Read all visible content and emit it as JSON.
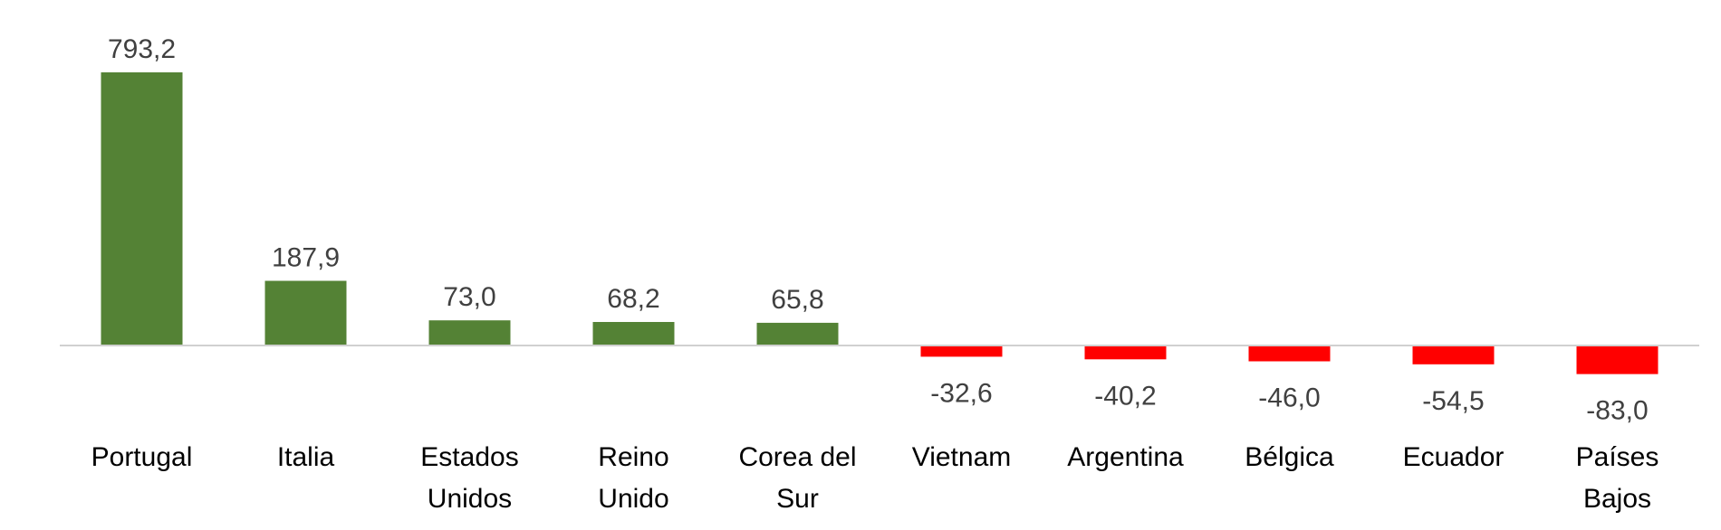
{
  "chart_data": {
    "type": "bar",
    "title": "",
    "xlabel": "",
    "ylabel": "",
    "categories": [
      [
        "Portugal"
      ],
      [
        "Italia"
      ],
      [
        "Estados",
        "Unidos"
      ],
      [
        "Reino",
        "Unido"
      ],
      [
        "Corea del",
        "Sur"
      ],
      [
        "Vietnam"
      ],
      [
        "Argentina"
      ],
      [
        "Bélgica"
      ],
      [
        "Ecuador"
      ],
      [
        "Países",
        "Bajos"
      ]
    ],
    "values": [
      793.2,
      187.9,
      73.0,
      68.2,
      65.8,
      -32.6,
      -40.2,
      -46.0,
      -54.5,
      -83.0
    ],
    "value_labels": [
      "793,2",
      "187,9",
      "73,0",
      "68,2",
      "65,8",
      "-32,6",
      "-40,2",
      "-46,0",
      "-54,5",
      "-83,0"
    ],
    "colors": {
      "positive": "#548235",
      "negative": "#ff0000",
      "axis": "#d0d0d0",
      "text": "#404040"
    },
    "grid": false,
    "legend": "none",
    "ylim": [
      -120,
      830
    ]
  }
}
